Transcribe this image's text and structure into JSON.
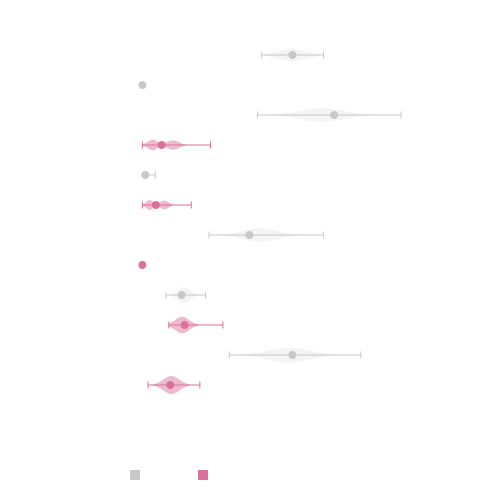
{
  "chart_data": {
    "type": "violin",
    "title": "",
    "xlabel": "",
    "ylabel": "",
    "grid": false,
    "xlim": [
      0,
      120
    ],
    "x_axis_visible": false,
    "y_axis_visible": false,
    "legend": {
      "placement": "bottom-left",
      "entries": [
        {
          "series": 0,
          "label": ""
        },
        {
          "series": 1,
          "label": ""
        }
      ]
    },
    "series": [
      {
        "name": "",
        "color": "#c8c8c8",
        "fill": "#ededed"
      },
      {
        "name": "",
        "color": "#d9719a",
        "fill": "#e8a3bd"
      }
    ],
    "rows": [
      {
        "series": 0,
        "min": 45.8,
        "max": 67.3,
        "mean": 56.5,
        "width": 0.45,
        "shape": "diamond"
      },
      {
        "series": 0,
        "min": 4.3,
        "max": 4.3,
        "mean": 4.3,
        "width": 0.0,
        "shape": "point"
      },
      {
        "series": 0,
        "min": 44.3,
        "max": 94.3,
        "mean": 71.0,
        "width": 0.45,
        "shape": "smooth"
      },
      {
        "series": 1,
        "min": 4.3,
        "max": 28.0,
        "mean": 11.0,
        "width": 0.38,
        "shape": "bimodal"
      },
      {
        "series": 0,
        "min": 5.0,
        "max": 8.8,
        "mean": 5.3,
        "width": 0.05,
        "shape": "smooth"
      },
      {
        "series": 1,
        "min": 4.3,
        "max": 21.3,
        "mean": 9.0,
        "width": 0.35,
        "shape": "bimodal"
      },
      {
        "series": 0,
        "min": 27.5,
        "max": 67.3,
        "mean": 41.5,
        "width": 0.45,
        "shape": "smooth"
      },
      {
        "series": 1,
        "min": 4.3,
        "max": 4.3,
        "mean": 4.3,
        "width": 0.1,
        "shape": "point"
      },
      {
        "series": 0,
        "min": 12.5,
        "max": 26.3,
        "mean": 18.0,
        "width": 0.52,
        "shape": "smooth"
      },
      {
        "series": 1,
        "min": 13.5,
        "max": 32.3,
        "mean": 19.0,
        "width": 0.55,
        "shape": "skewed"
      },
      {
        "series": 0,
        "min": 34.5,
        "max": 80.3,
        "mean": 56.5,
        "width": 0.5,
        "shape": "smooth"
      },
      {
        "series": 1,
        "min": 6.3,
        "max": 24.3,
        "mean": 14.0,
        "width": 0.6,
        "shape": "smooth"
      }
    ]
  }
}
